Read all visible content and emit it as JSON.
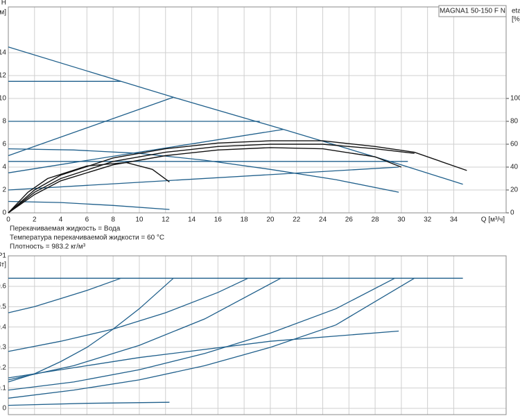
{
  "chart_data": [
    {
      "type": "line",
      "title": "MAGNA1 50-150 F N",
      "ylabel": "H",
      "yunit": "[м]",
      "y2label": "eta",
      "y2unit": "[%]",
      "xlabel": "Q [м³/ч]",
      "annotations": [
        "Перекачиваемая жидкость = Вода",
        "Температура перекачиваемой жидкости = 60 °C",
        "Плотность = 983.2 кг/м³"
      ],
      "xlim": [
        0,
        38
      ],
      "xticks": [
        0,
        2,
        4,
        6,
        8,
        10,
        12,
        14,
        16,
        18,
        20,
        22,
        24,
        26,
        28,
        30,
        32,
        34
      ],
      "ylim": [
        0,
        18
      ],
      "yticks": [
        0,
        2,
        4,
        6,
        8,
        10,
        12,
        14
      ],
      "y2lim": [
        0,
        180
      ],
      "y2ticks": [
        0,
        20,
        40,
        60,
        80,
        100
      ],
      "grid": true,
      "series": [
        {
          "color": "#1f5f8b",
          "x": [
            0,
            12.6,
            21,
            30,
            34.7
          ],
          "values": [
            14.5,
            10.1,
            7.3,
            4.2,
            2.5
          ]
        },
        {
          "color": "#1f5f8b",
          "x": [
            0,
            8.6
          ],
          "values": [
            11.5,
            11.5
          ]
        },
        {
          "color": "#1f5f8b",
          "x": [
            0,
            19.2
          ],
          "values": [
            8,
            8
          ]
        },
        {
          "color": "#1f5f8b",
          "x": [
            0,
            30.5
          ],
          "values": [
            4.5,
            4.5
          ]
        },
        {
          "color": "#1f5f8b",
          "x": [
            0,
            12.6
          ],
          "values": [
            5,
            10.1
          ]
        },
        {
          "color": "#1f5f8b",
          "x": [
            0,
            21
          ],
          "values": [
            3.5,
            7.3
          ]
        },
        {
          "color": "#1f5f8b",
          "x": [
            0,
            29.8
          ],
          "values": [
            2,
            4
          ]
        },
        {
          "color": "#1f5f8b",
          "x": [
            0,
            5,
            10,
            15,
            20,
            25,
            29.8
          ],
          "values": [
            5.6,
            5.5,
            5.2,
            4.6,
            3.8,
            2.9,
            1.8
          ]
        },
        {
          "color": "#1f5f8b",
          "x": [
            0,
            4,
            8,
            12.3
          ],
          "values": [
            1,
            0.9,
            0.65,
            0.3
          ]
        },
        {
          "color": "#111111",
          "axis": "y2",
          "x": [
            0,
            2,
            4,
            8,
            12,
            16,
            20,
            24,
            28,
            31,
            35
          ],
          "values": [
            0,
            20,
            33,
            48,
            56,
            61,
            63,
            63,
            58,
            53,
            37
          ]
        },
        {
          "color": "#111111",
          "axis": "y2",
          "x": [
            0,
            2,
            4,
            8,
            12,
            16,
            20,
            24,
            28,
            31
          ],
          "values": [
            0,
            18,
            30,
            45,
            53,
            58,
            60,
            60,
            56,
            52
          ]
        },
        {
          "color": "#111111",
          "axis": "y2",
          "x": [
            0,
            2,
            4,
            8,
            12,
            16,
            20,
            24,
            28,
            30
          ],
          "values": [
            0,
            16,
            28,
            42,
            50,
            55,
            57,
            56,
            49,
            40
          ]
        },
        {
          "color": "#111111",
          "axis": "y2",
          "x": [
            0,
            1.5,
            3,
            6,
            9,
            11,
            12.3
          ],
          "values": [
            0,
            18,
            30,
            41,
            44,
            38,
            27
          ]
        }
      ]
    },
    {
      "type": "line",
      "ylabel": "P1",
      "yunit": "[кВт]",
      "xlim": [
        0,
        38
      ],
      "ylim": [
        0,
        0.75
      ],
      "yticks": [
        0,
        0.1,
        0.2,
        0.3,
        0.4,
        0.5,
        0.6
      ],
      "grid": true,
      "series": [
        {
          "color": "#1f5f8b",
          "x": [
            0,
            34.7
          ],
          "values": [
            0.64,
            0.64
          ]
        },
        {
          "color": "#1f5f8b",
          "x": [
            0,
            2,
            4,
            6,
            8.6
          ],
          "values": [
            0.47,
            0.5,
            0.54,
            0.58,
            0.64
          ]
        },
        {
          "color": "#1f5f8b",
          "x": [
            0,
            4,
            8,
            12,
            16,
            18.3
          ],
          "values": [
            0.28,
            0.33,
            0.39,
            0.47,
            0.57,
            0.64
          ]
        },
        {
          "color": "#1f5f8b",
          "x": [
            0,
            2,
            4,
            6,
            8,
            10,
            12.6
          ],
          "values": [
            0.13,
            0.17,
            0.23,
            0.3,
            0.39,
            0.49,
            0.64
          ]
        },
        {
          "color": "#1f5f8b",
          "x": [
            0,
            5,
            10,
            15,
            20.8
          ],
          "values": [
            0.14,
            0.21,
            0.31,
            0.44,
            0.64
          ]
        },
        {
          "color": "#1f5f8b",
          "x": [
            0,
            10,
            20,
            29.8
          ],
          "values": [
            0.15,
            0.25,
            0.33,
            0.38
          ]
        },
        {
          "color": "#1f5f8b",
          "x": [
            0,
            5,
            10,
            15,
            20,
            25,
            29.5
          ],
          "values": [
            0.09,
            0.13,
            0.19,
            0.27,
            0.37,
            0.49,
            0.64
          ]
        },
        {
          "color": "#1f5f8b",
          "x": [
            0,
            5,
            10,
            15,
            20,
            25,
            31
          ],
          "values": [
            0.05,
            0.09,
            0.14,
            0.21,
            0.3,
            0.41,
            0.64
          ]
        },
        {
          "color": "#1f5f8b",
          "x": [
            0,
            6,
            12.3
          ],
          "values": [
            0.015,
            0.025,
            0.03
          ]
        }
      ]
    }
  ]
}
